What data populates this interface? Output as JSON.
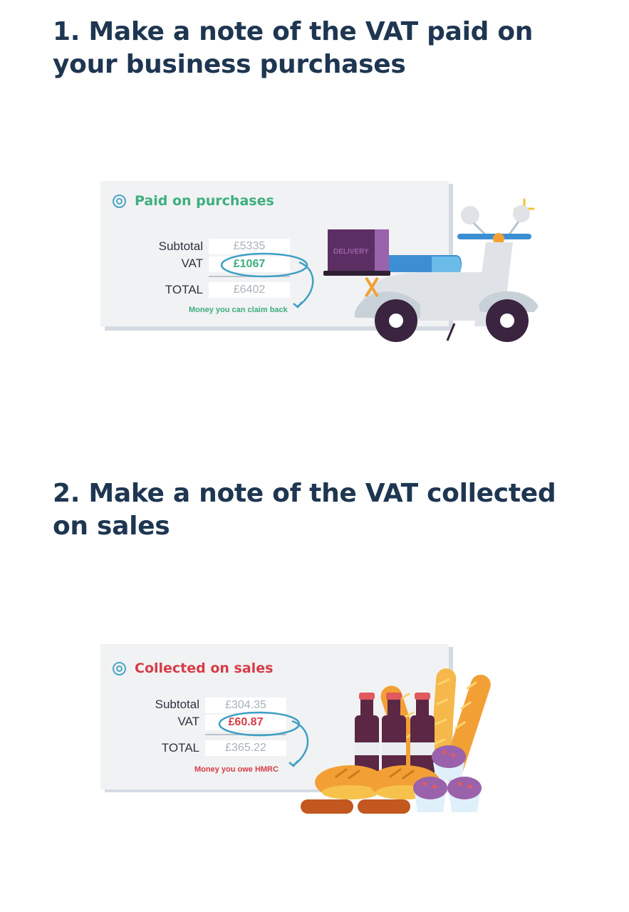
{
  "section1": {
    "heading": "1. Make a note of the VAT paid on your business purchases",
    "card": {
      "title": "Paid on purchases",
      "subtotal_label": "Subtotal",
      "subtotal_value": "£5335",
      "vat_label": "VAT",
      "vat_value": "£1067",
      "total_label": "TOTAL",
      "total_value": "£6402",
      "note": "Money you can claim back",
      "accent_color": "#3dae7f"
    },
    "illustration": {
      "box_label": "DELIVERY",
      "icon": "delivery-scooter-icon"
    }
  },
  "section2": {
    "heading": "2. Make a note of the VAT collected on sales",
    "card": {
      "title": "Collected on sales",
      "subtotal_label": "Subtotal",
      "subtotal_value": "£304.35",
      "vat_label": "VAT",
      "vat_value": "£60.87",
      "total_label": "TOTAL",
      "total_value": "£365.22",
      "note": "Money you owe HMRC",
      "accent_color": "#d63c47"
    },
    "illustration": {
      "icon": "bakery-goods-icon"
    }
  }
}
